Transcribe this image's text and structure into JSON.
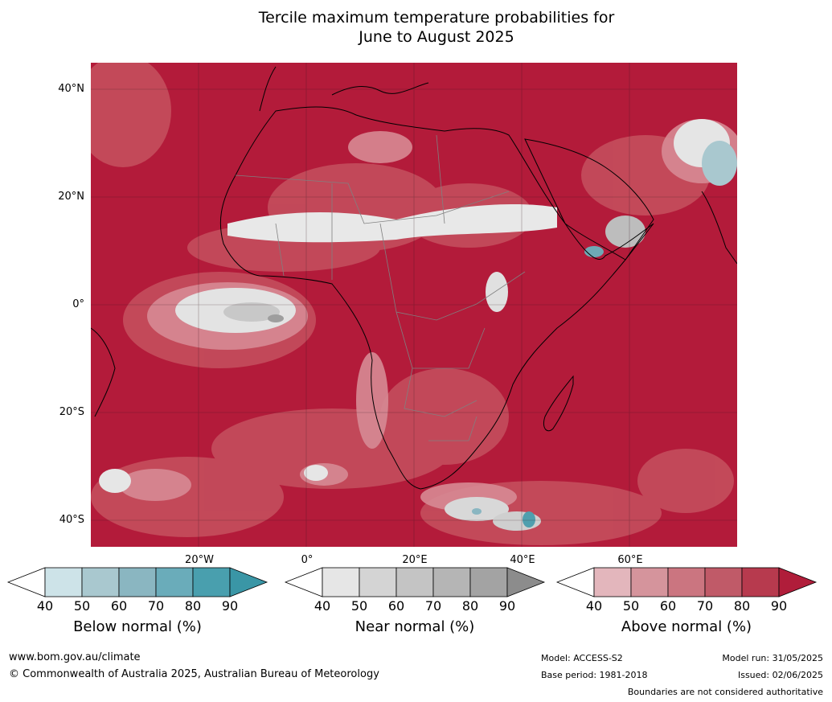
{
  "title": {
    "line1": "Tercile maximum temperature probabilities for",
    "line2": "June to August 2025"
  },
  "map": {
    "region": "Africa",
    "lat_labels": [
      "40°N",
      "20°N",
      "0°",
      "20°S",
      "40°S"
    ],
    "lon_labels": [
      "20°W",
      "0°",
      "20°E",
      "40°E",
      "60°E"
    ],
    "colors": {
      "above_normal_90": "#b31b3a",
      "above_normal_80": "#c24a5f",
      "above_normal_70": "#cd6e7c",
      "above_normal_60": "#d9949d",
      "above_normal_50": "#e6b9be",
      "near_normal_50": "#e0e0e0",
      "near_normal_70": "#b9b9b9",
      "near_normal_90": "#8c8c8c",
      "below_normal_70": "#6eaab5",
      "below_normal_80": "#4f9fae",
      "coastline": "#000000",
      "borders": "#808080"
    }
  },
  "colorbars": [
    {
      "name": "Below normal (%)",
      "ticks": [
        "40",
        "50",
        "60",
        "70",
        "80",
        "90"
      ],
      "colors": [
        "#ffffff",
        "#cde3e8",
        "#a9c8cf",
        "#8ab6c1",
        "#6aacba",
        "#499fae",
        "#3a96a6"
      ]
    },
    {
      "name": "Near normal (%)",
      "ticks": [
        "40",
        "50",
        "60",
        "70",
        "80",
        "90"
      ],
      "colors": [
        "#ffffff",
        "#e6e6e6",
        "#d4d4d4",
        "#c4c4c4",
        "#b5b5b5",
        "#a3a3a3",
        "#8c8c8c"
      ]
    },
    {
      "name": "Above normal (%)",
      "ticks": [
        "40",
        "50",
        "60",
        "70",
        "80",
        "90"
      ],
      "colors": [
        "#ffffff",
        "#e3b6bc",
        "#d5949c",
        "#cb7580",
        "#c05a68",
        "#b73a4e",
        "#b01d3a"
      ]
    }
  ],
  "footer": {
    "website": "www.bom.gov.au/climate",
    "copyright": "© Commonwealth of Australia 2025, Australian Bureau of Meteorology",
    "model": "Model: ACCESS-S2",
    "base_period": "Base period: 1981-2018",
    "model_run": "Model run: 31/05/2025",
    "issued": "Issued: 02/06/2025",
    "disclaimer": "Boundaries are not considered authoritative"
  }
}
